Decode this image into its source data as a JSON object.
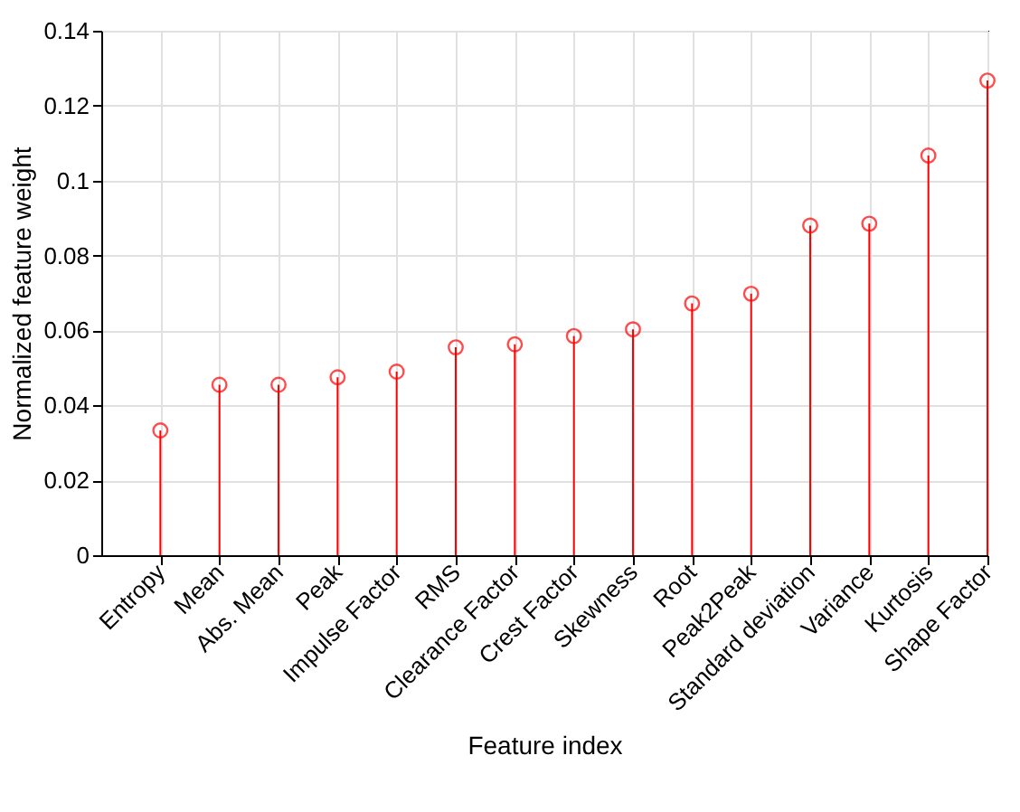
{
  "chart_data": {
    "type": "lollipop",
    "xlabel": "Feature index",
    "ylabel": "Normalized feature weight",
    "categories": [
      "Entropy",
      "Mean",
      "Abs. Mean",
      "Peak",
      "Impulse Factor",
      "RMS",
      "Clearance Factor",
      "Crest Factor",
      "Skewness",
      "Root",
      "Peak2Peak",
      "Standard deviation",
      "Variance",
      "Kurtosis",
      "Shape Factor"
    ],
    "values": [
      0.0333,
      0.0455,
      0.0455,
      0.0475,
      0.049,
      0.0555,
      0.0563,
      0.0585,
      0.0603,
      0.0672,
      0.0698,
      0.088,
      0.0885,
      0.1067,
      0.1267
    ],
    "color": "#ff0000",
    "marker": "circle",
    "ylim": [
      0,
      0.14
    ],
    "yticks": [
      0,
      0.02,
      0.04,
      0.06,
      0.08,
      0.1,
      0.12,
      0.14
    ],
    "grid": true
  }
}
